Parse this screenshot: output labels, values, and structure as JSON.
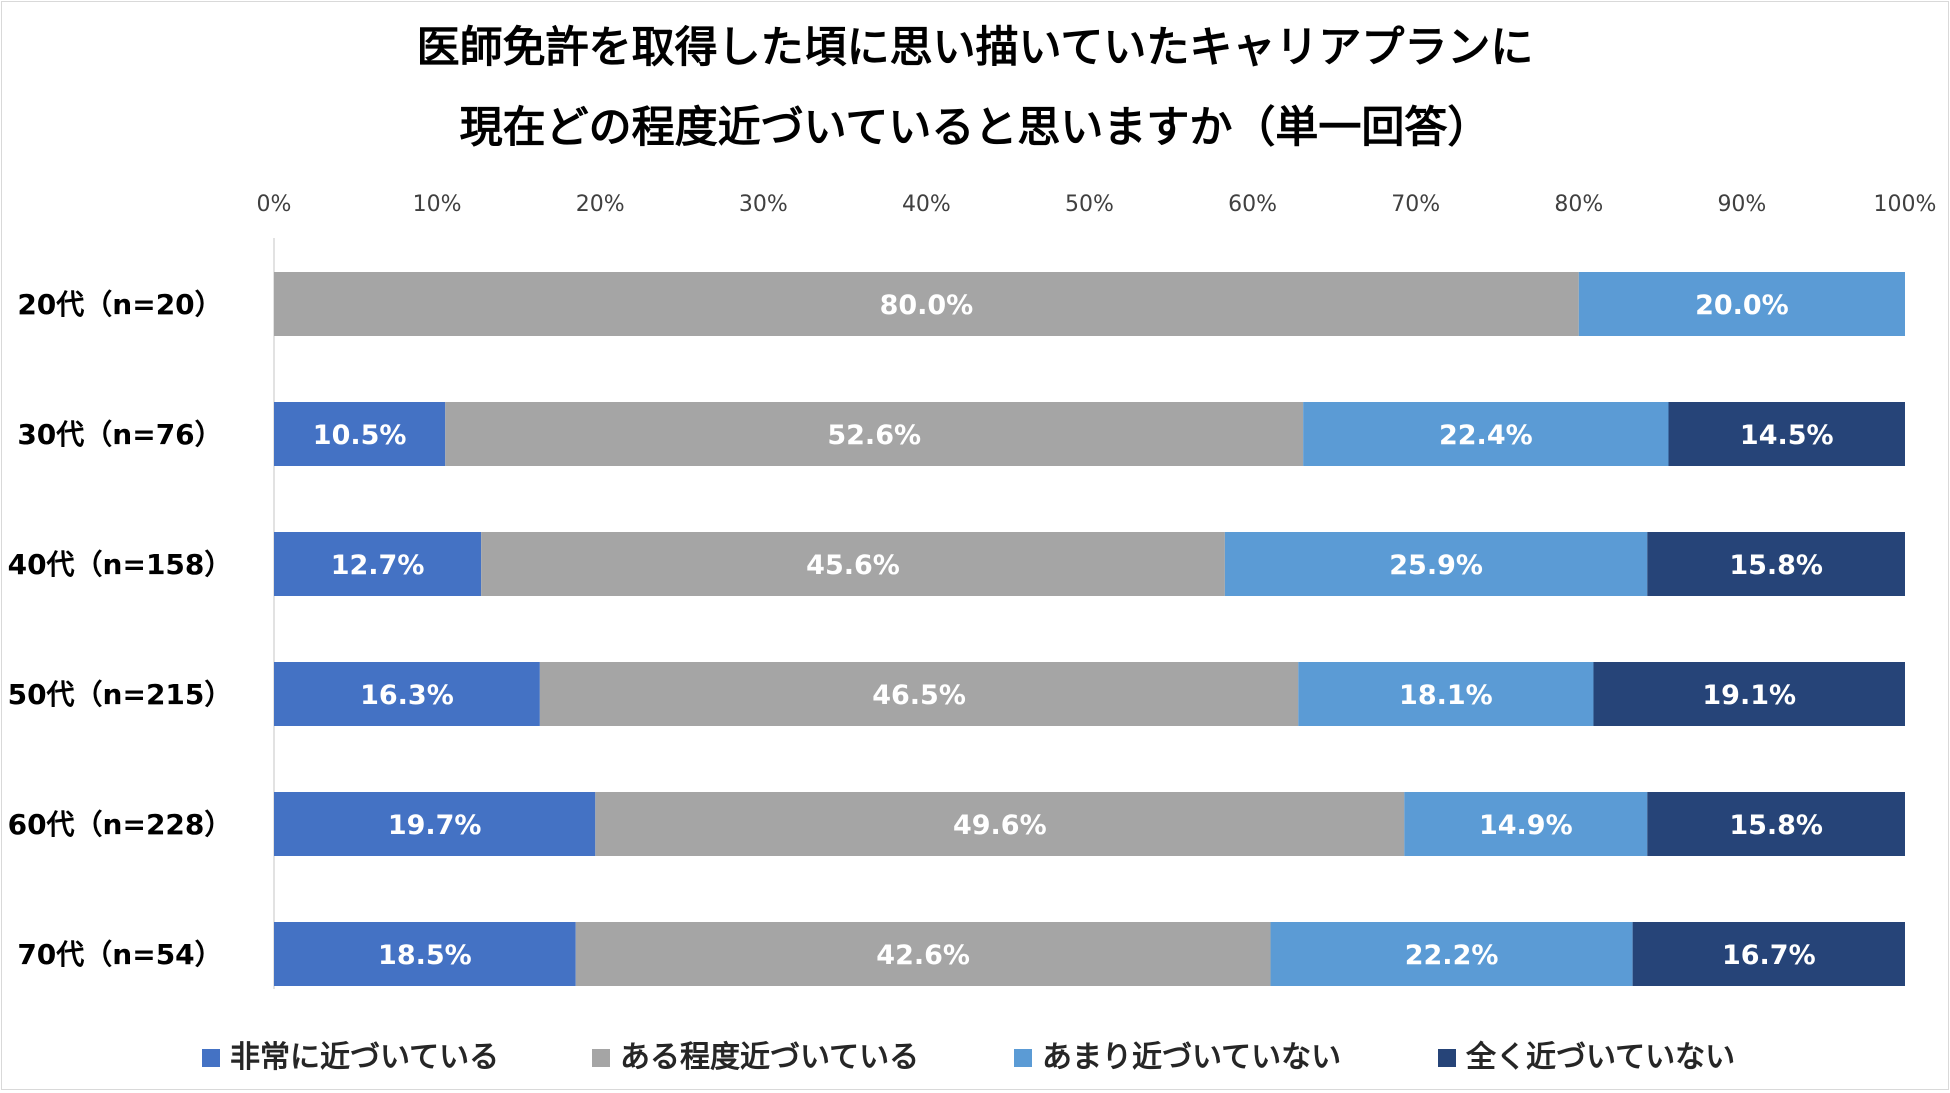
{
  "chart_data": {
    "type": "bar",
    "orientation": "horizontal-stacked-100",
    "title_lines": [
      "医師免許を取得した頃に思い描いていたキャリアプランに",
      "現在どの程度近づいていると思いますか（単一回答）"
    ],
    "categories": [
      "20代（n=20）",
      "30代（n=76）",
      "40代（n=158）",
      "50代（n=215）",
      "60代（n=228）",
      "70代（n=54）"
    ],
    "series": [
      {
        "name": "非常に近づいている",
        "color": "#4472c4",
        "values": [
          0,
          10.5,
          12.7,
          16.3,
          19.7,
          18.5
        ]
      },
      {
        "name": "ある程度近づいている",
        "color": "#a5a5a5",
        "values": [
          80.0,
          52.6,
          45.6,
          46.5,
          49.6,
          42.6
        ]
      },
      {
        "name": "あまり近づいていない",
        "color": "#5b9bd5",
        "values": [
          20.0,
          22.4,
          25.9,
          18.1,
          14.9,
          22.2
        ]
      },
      {
        "name": "全く近づいていない",
        "color": "#264478",
        "values": [
          0,
          14.5,
          15.8,
          19.1,
          15.8,
          16.7
        ]
      }
    ],
    "x_ticks": [
      "0%",
      "10%",
      "20%",
      "30%",
      "40%",
      "50%",
      "60%",
      "70%",
      "80%",
      "90%",
      "100%"
    ],
    "xlim": [
      0,
      100
    ],
    "label_format": "0.0%",
    "legend_position": "bottom",
    "grid": false
  }
}
